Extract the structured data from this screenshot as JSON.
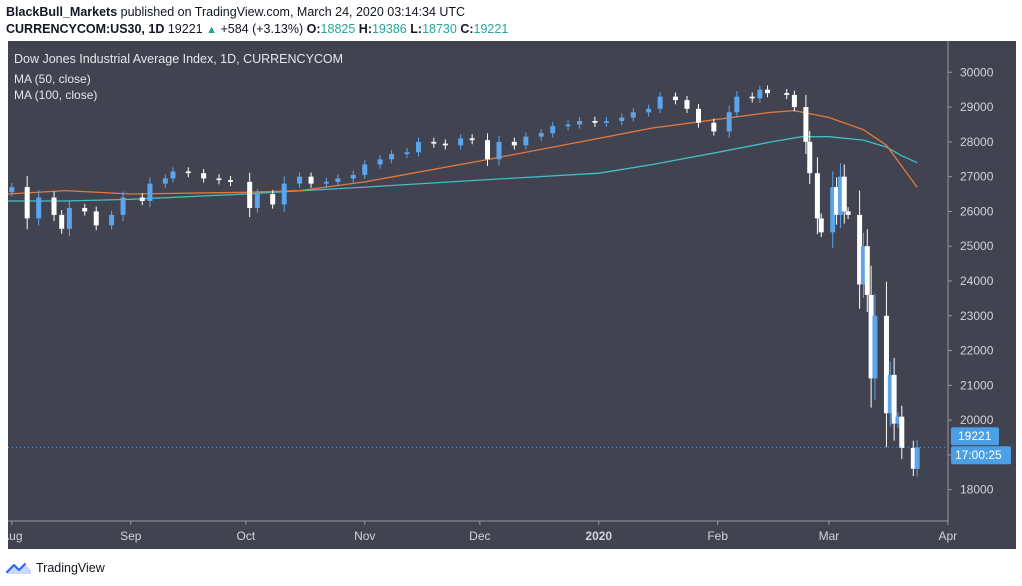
{
  "header": {
    "author": "BlackBull_Markets",
    "published_text": " published on TradingView.com, March 24, 2020 03:14:34 UTC",
    "symbol": "CURRENCYCOM:US30, 1D",
    "last": "19221",
    "change": "+584 (+3.13%)",
    "o_label": "O:",
    "o_value": "18825",
    "h_label": "H:",
    "h_value": "19386",
    "l_label": "L:",
    "l_value": "18730",
    "c_label": "C:",
    "c_value": "19221"
  },
  "legend": {
    "title": "Dow Jones Industrial Average Index, 1D, CURRENCYCOM",
    "ma50": "MA (50, close)",
    "ma100": "MA (100, close)"
  },
  "footer": {
    "brand": "TradingView"
  },
  "colors": {
    "background": "#414350",
    "up_candle": "#5aa5ec",
    "down_candle": "#ffffff",
    "ma50": "#e8783a",
    "ma100": "#3ec1c4",
    "price_badge": "#4a9fe6",
    "axis_text": "#d1d4dc"
  },
  "chart_data": {
    "type": "candlestick",
    "title": "Dow Jones Industrial Average Index, 1D, CURRENCYCOM",
    "x_range": [
      "2019-07-31",
      "2020-03-31"
    ],
    "y_range": [
      17100,
      30900
    ],
    "y_ticks": [
      18000,
      19000,
      20000,
      21000,
      22000,
      23000,
      24000,
      25000,
      26000,
      27000,
      28000,
      29000,
      30000
    ],
    "x_ticks": [
      {
        "label": "Aug",
        "date": "2019-08-01"
      },
      {
        "label": "Sep",
        "date": "2019-09-01"
      },
      {
        "label": "Oct",
        "date": "2019-10-01"
      },
      {
        "label": "Nov",
        "date": "2019-11-01"
      },
      {
        "label": "Dec",
        "date": "2019-12-01"
      },
      {
        "label": "2020",
        "date": "2020-01-01",
        "bold": true
      },
      {
        "label": "Feb",
        "date": "2020-02-01"
      },
      {
        "label": "Mar",
        "date": "2020-03-01"
      },
      {
        "label": "Apr",
        "date": "2020-04-01"
      }
    ],
    "price_label": "19221",
    "price_value": 19221,
    "countdown_label": "17:00:25",
    "candles": [
      {
        "date": "2019-08-01",
        "close": 26700
      },
      {
        "date": "2019-08-05",
        "close": 25800
      },
      {
        "date": "2019-08-08",
        "close": 26400
      },
      {
        "date": "2019-08-12",
        "close": 25900
      },
      {
        "date": "2019-08-14",
        "close": 25500
      },
      {
        "date": "2019-08-16",
        "close": 26100
      },
      {
        "date": "2019-08-20",
        "close": 26000
      },
      {
        "date": "2019-08-23",
        "close": 25600
      },
      {
        "date": "2019-08-27",
        "close": 25900
      },
      {
        "date": "2019-08-30",
        "close": 26400
      },
      {
        "date": "2019-09-04",
        "close": 26300
      },
      {
        "date": "2019-09-06",
        "close": 26800
      },
      {
        "date": "2019-09-10",
        "close": 26950
      },
      {
        "date": "2019-09-12",
        "close": 27150
      },
      {
        "date": "2019-09-16",
        "close": 27100
      },
      {
        "date": "2019-09-20",
        "close": 26950
      },
      {
        "date": "2019-09-24",
        "close": 26900
      },
      {
        "date": "2019-09-27",
        "close": 26850
      },
      {
        "date": "2019-10-02",
        "close": 26100
      },
      {
        "date": "2019-10-04",
        "close": 26500
      },
      {
        "date": "2019-10-08",
        "close": 26200
      },
      {
        "date": "2019-10-11",
        "close": 26800
      },
      {
        "date": "2019-10-15",
        "close": 27000
      },
      {
        "date": "2019-10-18",
        "close": 26800
      },
      {
        "date": "2019-10-22",
        "close": 26850
      },
      {
        "date": "2019-10-25",
        "close": 26950
      },
      {
        "date": "2019-10-29",
        "close": 27050
      },
      {
        "date": "2019-11-01",
        "close": 27350
      },
      {
        "date": "2019-11-05",
        "close": 27500
      },
      {
        "date": "2019-11-08",
        "close": 27650
      },
      {
        "date": "2019-11-12",
        "close": 27700
      },
      {
        "date": "2019-11-15",
        "close": 28000
      },
      {
        "date": "2019-11-19",
        "close": 27950
      },
      {
        "date": "2019-11-22",
        "close": 27900
      },
      {
        "date": "2019-11-26",
        "close": 28100
      },
      {
        "date": "2019-11-29",
        "close": 28050
      },
      {
        "date": "2019-12-03",
        "close": 27500
      },
      {
        "date": "2019-12-06",
        "close": 28000
      },
      {
        "date": "2019-12-10",
        "close": 27900
      },
      {
        "date": "2019-12-13",
        "close": 28150
      },
      {
        "date": "2019-12-17",
        "close": 28250
      },
      {
        "date": "2019-12-20",
        "close": 28450
      },
      {
        "date": "2019-12-24",
        "close": 28500
      },
      {
        "date": "2019-12-27",
        "close": 28600
      },
      {
        "date": "2019-12-31",
        "close": 28550
      },
      {
        "date": "2020-01-03",
        "close": 28600
      },
      {
        "date": "2020-01-07",
        "close": 28700
      },
      {
        "date": "2020-01-10",
        "close": 28850
      },
      {
        "date": "2020-01-14",
        "close": 28950
      },
      {
        "date": "2020-01-17",
        "close": 29300
      },
      {
        "date": "2020-01-21",
        "close": 29200
      },
      {
        "date": "2020-01-24",
        "close": 28950
      },
      {
        "date": "2020-01-27",
        "close": 28550
      },
      {
        "date": "2020-01-31",
        "close": 28300
      },
      {
        "date": "2020-02-04",
        "close": 28850
      },
      {
        "date": "2020-02-06",
        "close": 29300
      },
      {
        "date": "2020-02-10",
        "close": 29250
      },
      {
        "date": "2020-02-12",
        "close": 29500
      },
      {
        "date": "2020-02-14",
        "close": 29400
      },
      {
        "date": "2020-02-19",
        "close": 29350
      },
      {
        "date": "2020-02-21",
        "close": 29000
      },
      {
        "date": "2020-02-24",
        "close": 28000
      },
      {
        "date": "2020-02-25",
        "close": 27100
      },
      {
        "date": "2020-02-27",
        "close": 25800
      },
      {
        "date": "2020-02-28",
        "close": 25400
      },
      {
        "date": "2020-03-02",
        "close": 26700
      },
      {
        "date": "2020-03-03",
        "close": 25900
      },
      {
        "date": "2020-03-04",
        "close": 27000
      },
      {
        "date": "2020-03-05",
        "close": 26000
      },
      {
        "date": "2020-03-06",
        "close": 25900
      },
      {
        "date": "2020-03-09",
        "close": 23900
      },
      {
        "date": "2020-03-10",
        "close": 25000
      },
      {
        "date": "2020-03-11",
        "close": 23600
      },
      {
        "date": "2020-03-12",
        "close": 21200
      },
      {
        "date": "2020-03-13",
        "close": 23000
      },
      {
        "date": "2020-03-16",
        "close": 20200
      },
      {
        "date": "2020-03-17",
        "close": 21300
      },
      {
        "date": "2020-03-18",
        "close": 19900
      },
      {
        "date": "2020-03-19",
        "close": 20100
      },
      {
        "date": "2020-03-20",
        "close": 19200
      },
      {
        "date": "2020-03-23",
        "close": 18600
      },
      {
        "date": "2020-03-24",
        "close": 19221
      }
    ],
    "ma50": [
      {
        "date": "2019-07-31",
        "value": 26500
      },
      {
        "date": "2019-08-15",
        "value": 26600
      },
      {
        "date": "2019-09-01",
        "value": 26500
      },
      {
        "date": "2019-10-01",
        "value": 26550
      },
      {
        "date": "2019-10-15",
        "value": 26600
      },
      {
        "date": "2019-11-01",
        "value": 26850
      },
      {
        "date": "2019-12-01",
        "value": 27450
      },
      {
        "date": "2020-01-01",
        "value": 28100
      },
      {
        "date": "2020-01-15",
        "value": 28400
      },
      {
        "date": "2020-02-01",
        "value": 28650
      },
      {
        "date": "2020-02-15",
        "value": 28850
      },
      {
        "date": "2020-02-21",
        "value": 28900
      },
      {
        "date": "2020-03-01",
        "value": 28700
      },
      {
        "date": "2020-03-10",
        "value": 28350
      },
      {
        "date": "2020-03-16",
        "value": 27900
      },
      {
        "date": "2020-03-20",
        "value": 27300
      },
      {
        "date": "2020-03-24",
        "value": 26700
      }
    ],
    "ma100": [
      {
        "date": "2019-07-31",
        "value": 26300
      },
      {
        "date": "2019-08-15",
        "value": 26300
      },
      {
        "date": "2019-09-01",
        "value": 26350
      },
      {
        "date": "2019-10-01",
        "value": 26500
      },
      {
        "date": "2019-11-01",
        "value": 26700
      },
      {
        "date": "2019-12-01",
        "value": 26900
      },
      {
        "date": "2020-01-01",
        "value": 27100
      },
      {
        "date": "2020-01-15",
        "value": 27350
      },
      {
        "date": "2020-02-01",
        "value": 27700
      },
      {
        "date": "2020-02-15",
        "value": 28000
      },
      {
        "date": "2020-02-23",
        "value": 28150
      },
      {
        "date": "2020-03-01",
        "value": 28150
      },
      {
        "date": "2020-03-10",
        "value": 28050
      },
      {
        "date": "2020-03-16",
        "value": 27850
      },
      {
        "date": "2020-03-20",
        "value": 27600
      },
      {
        "date": "2020-03-24",
        "value": 27400
      }
    ]
  }
}
